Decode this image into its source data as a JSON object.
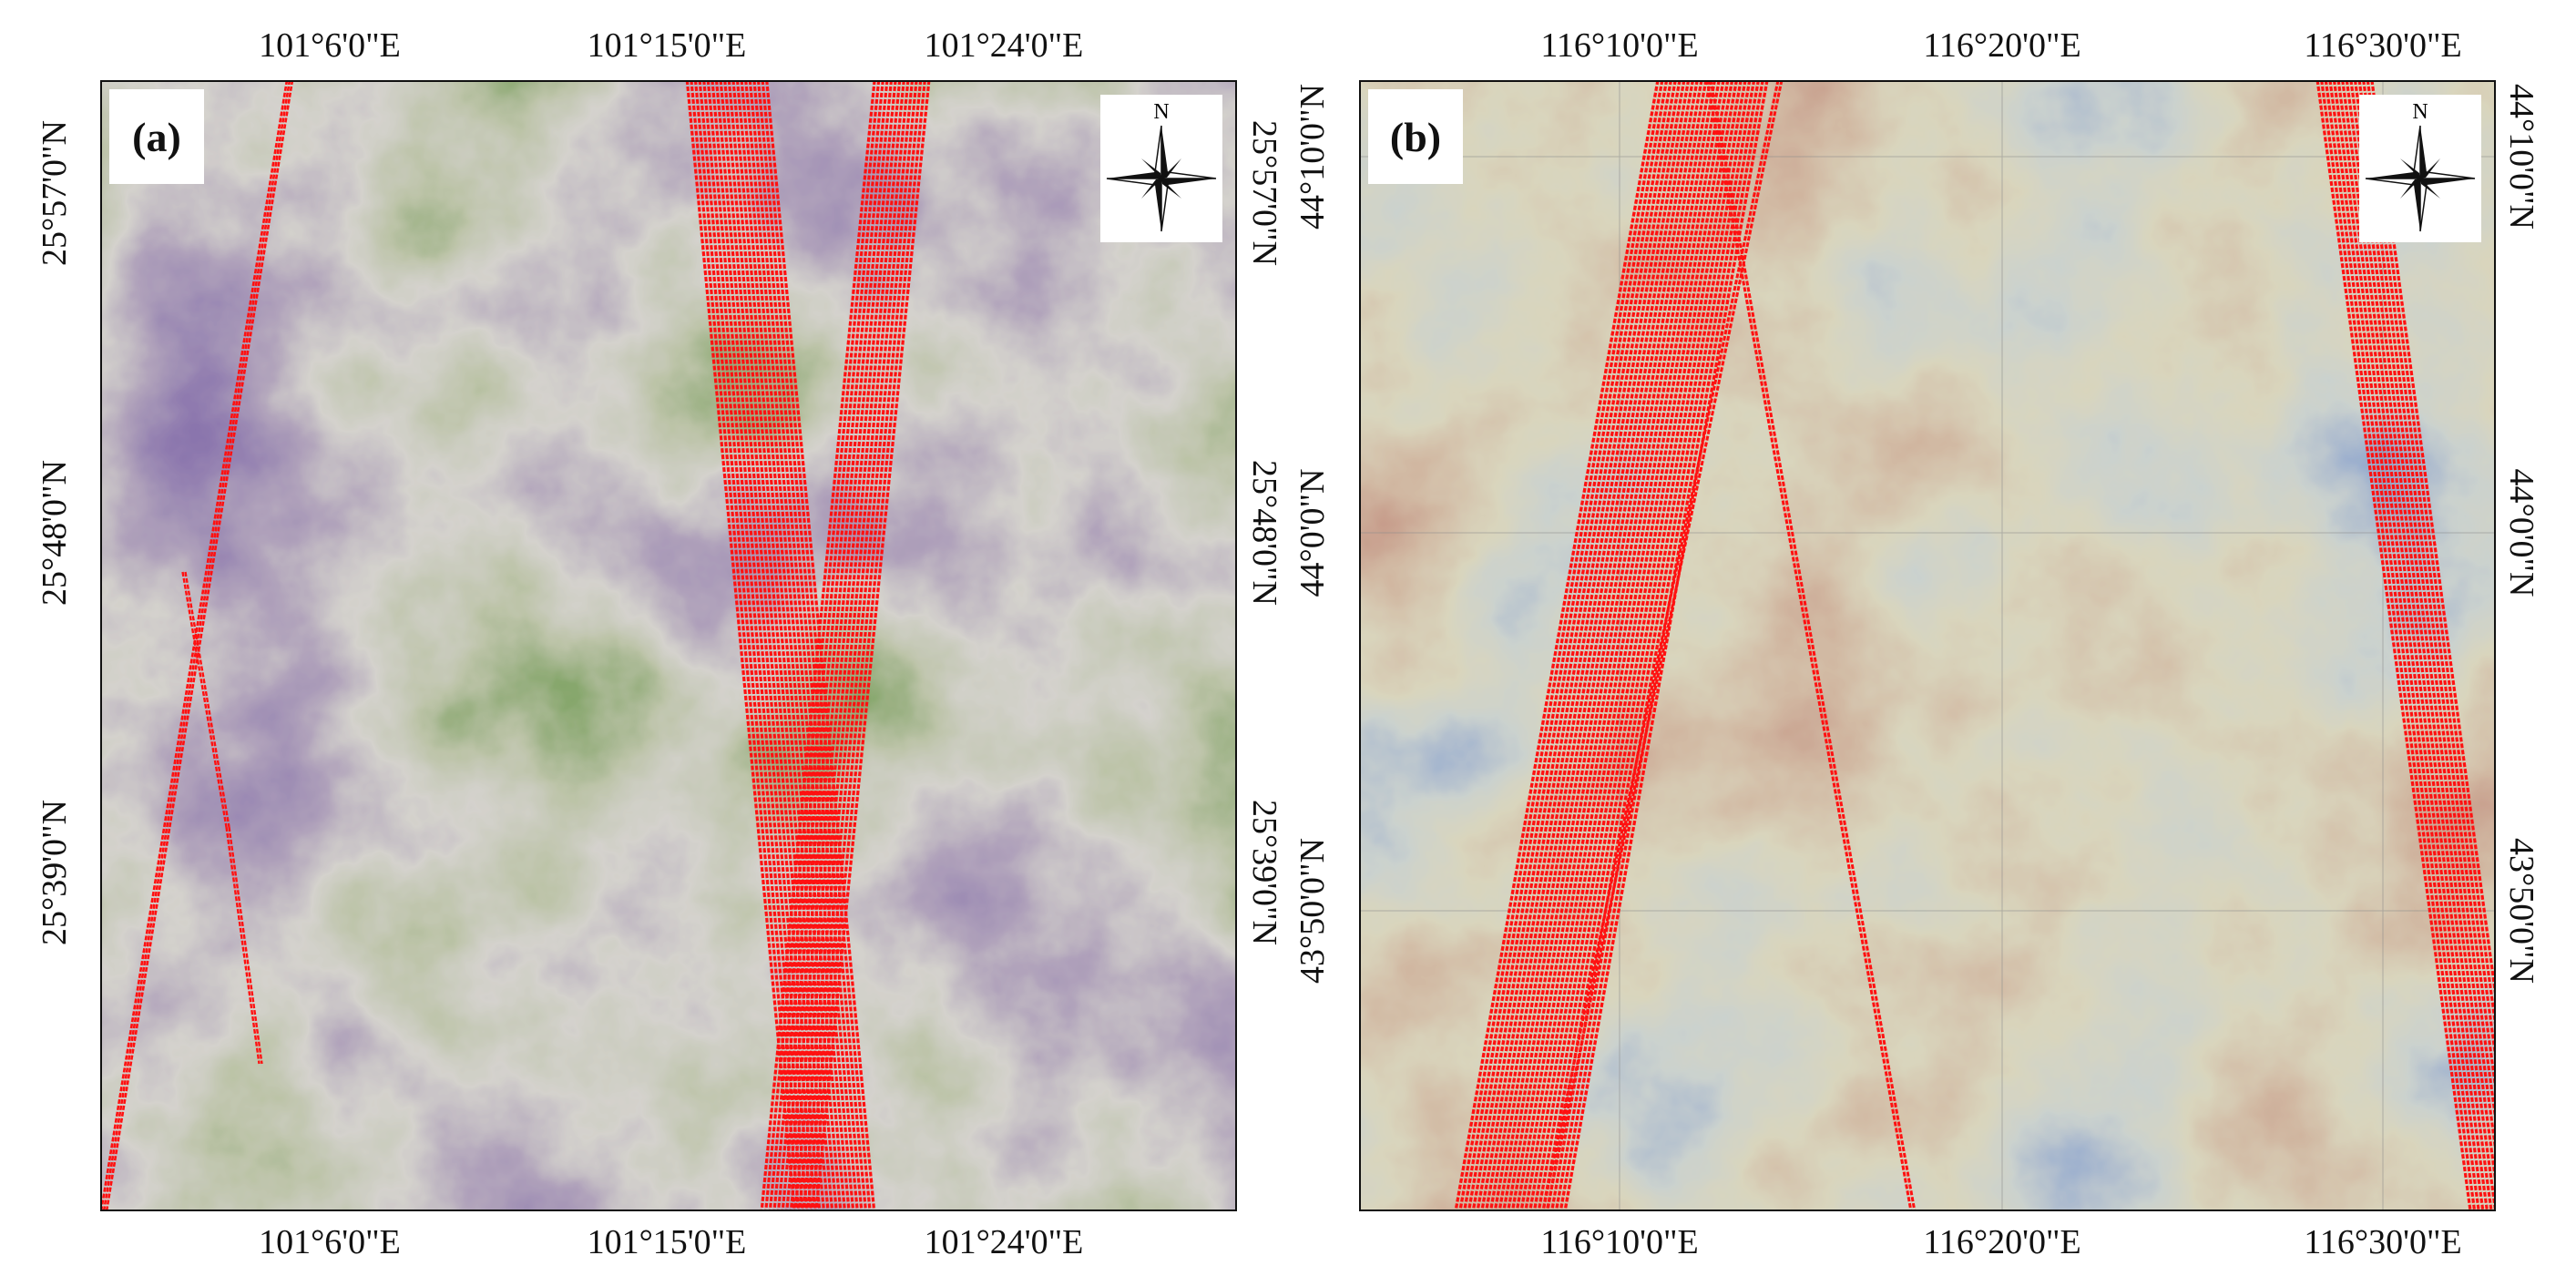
{
  "panels": [
    {
      "label": "(a)",
      "x_ticks_top": [
        "101°6'0\"E",
        "101°15'0\"E",
        "101°24'0\"E"
      ],
      "x_ticks_bottom": [
        "101°6'0\"E",
        "101°15'0\"E",
        "101°24'0\"E"
      ],
      "y_ticks_left": [
        "25°57'0\"N",
        "25°48'0\"N",
        "25°39'0\"N"
      ],
      "y_ticks_right": [
        "25°57'0\"N",
        "25°48'0\"N",
        "25°39'0\"N"
      ],
      "north_label": "N",
      "colors": {
        "low": "#6b4f95",
        "mid": "#ece7dc",
        "high": "#3e7d22",
        "track": "#ff1111"
      }
    },
    {
      "label": "(b)",
      "x_ticks_top": [
        "116°10'0\"E",
        "116°20'0\"E",
        "116°30'0\"E"
      ],
      "x_ticks_bottom": [
        "116°10'0\"E",
        "116°20'0\"E",
        "116°30'0\"E"
      ],
      "y_ticks_left": [
        "44°10'0\"N",
        "44°0'0\"N",
        "43°50'0\"N"
      ],
      "y_ticks_right": [
        "44°10'0\"N",
        "44°0'0\"N",
        "43°50'0\"N"
      ],
      "north_label": "N",
      "colors": {
        "low": "#b8604c",
        "mid": "#ebe2a8",
        "high": "#2b4fb8",
        "track": "#ff1111"
      }
    }
  ]
}
